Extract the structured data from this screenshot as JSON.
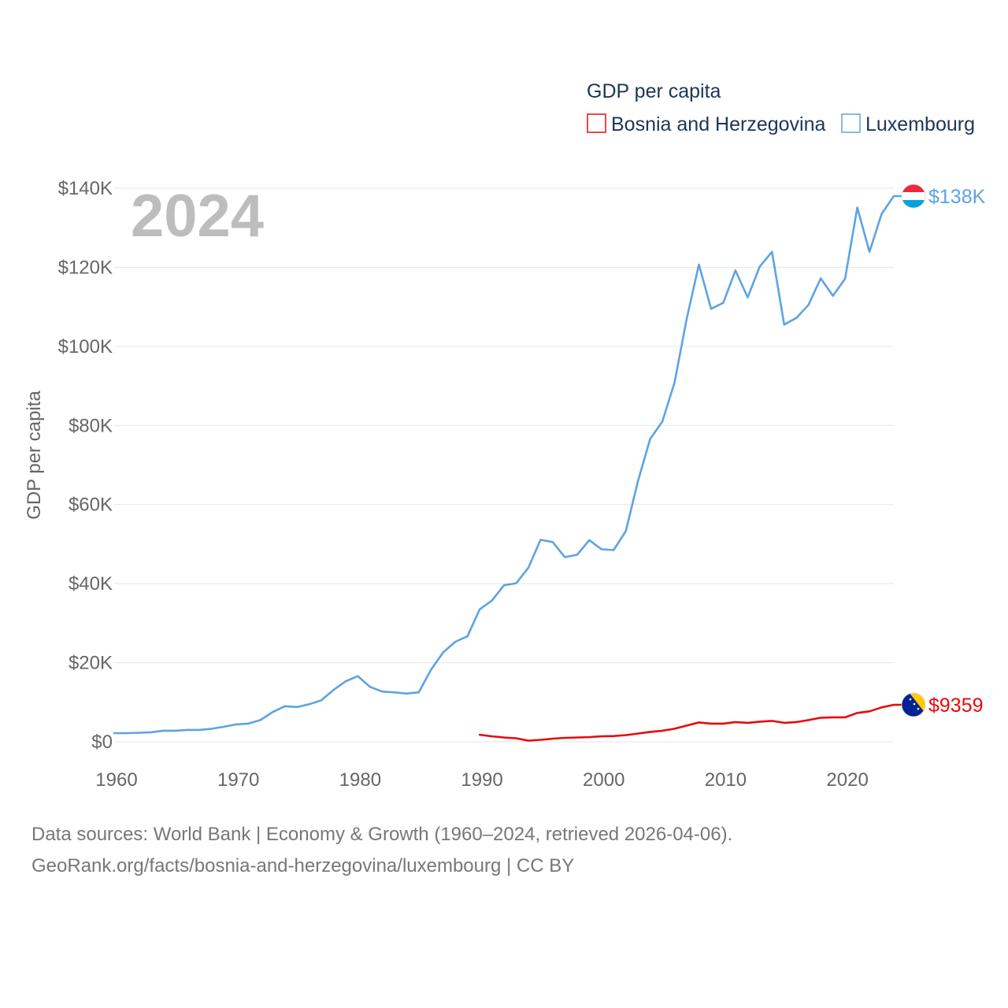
{
  "chart_data": {
    "type": "line",
    "title": "GDP per capita",
    "year_label": "2024",
    "ylabel": "GDP per capita",
    "xlabel": "",
    "xlim": [
      1960,
      2024
    ],
    "ylim": [
      0,
      140000
    ],
    "x_ticks": [
      {
        "value": 1960,
        "label": "1960"
      },
      {
        "value": 1970,
        "label": "1970"
      },
      {
        "value": 1980,
        "label": "1980"
      },
      {
        "value": 1990,
        "label": "1990"
      },
      {
        "value": 2000,
        "label": "2000"
      },
      {
        "value": 2010,
        "label": "2010"
      },
      {
        "value": 2020,
        "label": "2020"
      }
    ],
    "y_ticks": [
      {
        "value": 0,
        "label": "$0"
      },
      {
        "value": 20000,
        "label": "$20K"
      },
      {
        "value": 40000,
        "label": "$40K"
      },
      {
        "value": 60000,
        "label": "$60K"
      },
      {
        "value": 80000,
        "label": "$80K"
      },
      {
        "value": 100000,
        "label": "$100K"
      },
      {
        "value": 120000,
        "label": "$120K"
      },
      {
        "value": 140000,
        "label": "$140K"
      }
    ],
    "grid": true,
    "legend_position": "top-right",
    "series": [
      {
        "name": "Bosnia and Herzegovina",
        "color": "#e8090a",
        "end_label": "$9359",
        "flag": "bosnia-flag-icon",
        "x": [
          1990,
          1991,
          1992,
          1993,
          1994,
          1995,
          1996,
          1997,
          1998,
          1999,
          2000,
          2001,
          2002,
          2003,
          2004,
          2005,
          2006,
          2007,
          2008,
          2009,
          2010,
          2011,
          2012,
          2013,
          2014,
          2015,
          2016,
          2017,
          2018,
          2019,
          2020,
          2021,
          2022,
          2023,
          2024
        ],
        "values": [
          1800,
          1400,
          1100,
          900,
          300,
          500,
          800,
          1000,
          1100,
          1200,
          1400,
          1450,
          1700,
          2100,
          2500,
          2800,
          3300,
          4100,
          4900,
          4600,
          4600,
          5000,
          4800,
          5100,
          5300,
          4800,
          5000,
          5500,
          6100,
          6200,
          6200,
          7300,
          7700,
          8700,
          9359
        ]
      },
      {
        "name": "Luxembourg",
        "color": "#5ea3e2",
        "end_label": "$138K",
        "flag": "luxembourg-flag-icon",
        "x": [
          1960,
          1961,
          1962,
          1963,
          1964,
          1965,
          1966,
          1967,
          1968,
          1969,
          1970,
          1971,
          1972,
          1973,
          1974,
          1975,
          1976,
          1977,
          1978,
          1979,
          1980,
          1981,
          1982,
          1983,
          1984,
          1985,
          1986,
          1987,
          1988,
          1989,
          1990,
          1991,
          1992,
          1993,
          1994,
          1995,
          1996,
          1997,
          1998,
          1999,
          2000,
          2001,
          2002,
          2003,
          2004,
          2005,
          2006,
          2007,
          2008,
          2009,
          2010,
          2011,
          2012,
          2013,
          2014,
          2015,
          2016,
          2017,
          2018,
          2019,
          2020,
          2021,
          2022,
          2023,
          2024
        ],
        "values": [
          2200,
          2200,
          2300,
          2400,
          2800,
          2800,
          3000,
          3000,
          3300,
          3800,
          4400,
          4600,
          5500,
          7500,
          9000,
          8800,
          9500,
          10500,
          13100,
          15300,
          16600,
          13900,
          12700,
          12500,
          12200,
          12500,
          18200,
          22600,
          25300,
          26700,
          33500,
          35700,
          39600,
          40100,
          44000,
          51100,
          50500,
          46700,
          47300,
          51000,
          48700,
          48500,
          53300,
          66000,
          76600,
          81000,
          90900,
          107000,
          120700,
          109500,
          111000,
          119200,
          112400,
          120200,
          123900,
          105500,
          107200,
          110500,
          117200,
          112800,
          117100,
          135100,
          123900,
          133500,
          138000
        ]
      }
    ]
  },
  "legend": {
    "title": "GDP per capita",
    "items": [
      "Bosnia and Herzegovina",
      "Luxembourg"
    ]
  },
  "footer": {
    "line1": "Data sources: World Bank | Economy & Growth (1960–2024, retrieved 2026-04-06).",
    "line2": "GeoRank.org/facts/bosnia-and-herzegovina/luxembourg | CC BY"
  }
}
